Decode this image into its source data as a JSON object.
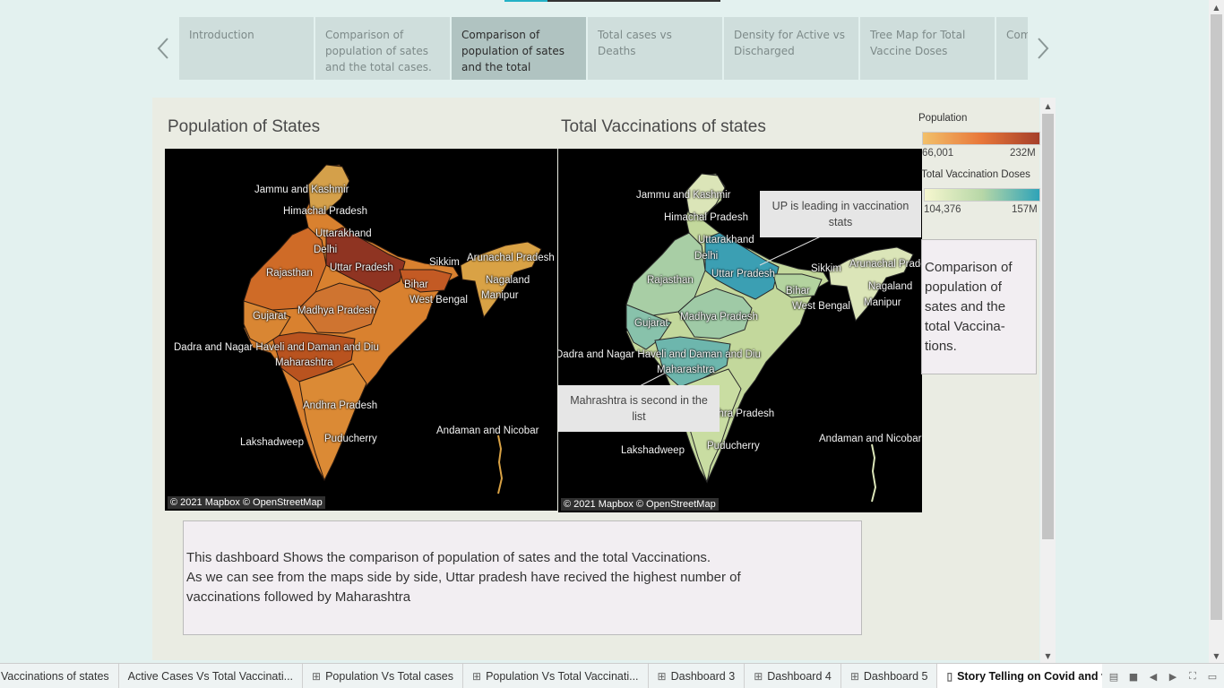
{
  "story": {
    "tabs": [
      {
        "label": "Introduction",
        "active": false
      },
      {
        "label": "Comparison of population of sates and the total cases.",
        "active": false
      },
      {
        "label": "Comparison of population of sates and the total",
        "active": true
      },
      {
        "label": "Total cases vs Deaths",
        "active": false
      },
      {
        "label": "Density for Active vs Discharged",
        "active": false
      },
      {
        "label": "Tree Map for Total Vaccine Doses",
        "active": false
      },
      {
        "label": "Comparation",
        "active": false
      }
    ]
  },
  "dashboard": {
    "population_title": "Population of States",
    "vaccination_title": "Total Vaccinations of states",
    "attribution": "© 2021 Mapbox © OpenStreetMap",
    "population_map": {
      "labels": {
        "jk": "Jammu and Kashmir",
        "hp": "Himachal Pradesh",
        "uk": "Uttarakhand",
        "dl": "Delhi",
        "rj": "Rajasthan",
        "up": "Uttar Pradesh",
        "sk": "Sikkim",
        "ar": "Arunachal Pradesh",
        "br": "Bihar",
        "nl": "Nagaland",
        "mn": "Manipur",
        "wb": "West Bengal",
        "gj": "Gujarat",
        "mp": "Madhya Pradesh",
        "dn": "Dadra and Nagar Haveli and Daman and Diu",
        "mh": "Maharashtra",
        "ap": "Andhra Pradesh",
        "ld": "Lakshadweep",
        "py": "Puducherry",
        "an": "Andaman and Nicobar"
      }
    },
    "vaccination_map": {
      "labels": {
        "jk": "Jammu and Kashmir",
        "hp": "Himachal Pradesh",
        "uk": "Uttarakhand",
        "dl": "Delhi",
        "rj": "Rajasthan",
        "up": "Uttar Pradesh",
        "sk": "Sikkim",
        "ar": "Arunachal Pradesh",
        "br": "Bihar",
        "nl": "Nagaland",
        "mn": "Manipur",
        "wb": "West Bengal",
        "gj": "Gujarat",
        "mp": "Madhya Pradesh",
        "dn": "Dadra and Nagar Haveli and Daman and Diu",
        "mh": "Maharashtra",
        "ap": "Andhra Pradesh",
        "ld": "Lakshadweep",
        "py": "Puducherry",
        "an": "Andaman and Nicobar"
      },
      "annotation_up": "UP is leading in vaccination stats",
      "annotation_mh": "Mahrashtra is second in the list"
    },
    "legend": {
      "population_title": "Population",
      "population_min": "66,001",
      "population_max": "232M",
      "population_colors": [
        "#f2c06a",
        "#e8773a",
        "#a53f2a"
      ],
      "vaccination_title": "Total Vaccination Doses",
      "vaccination_min": "104,376",
      "vaccination_max": "157M",
      "vaccination_colors": [
        "#f6f7cf",
        "#b7d7a7",
        "#2ea3b8"
      ]
    },
    "side_note": "Comparison of population of sates and the total Vaccina- tions.",
    "description": [
      "This dashboard Shows the comparison of population of sates and the total Vaccinations.",
      "As we can see from the maps side by side, Uttar pradesh have recived the highest number of",
      "vaccinations followed by Maharashtra"
    ]
  },
  "sheet_tabs": [
    {
      "label": "Vaccinations of states",
      "icon": "",
      "active": false
    },
    {
      "label": "Active Cases Vs Total Vaccinati...",
      "icon": "",
      "active": false
    },
    {
      "label": "Population Vs Total cases",
      "icon": "dashboard-icon",
      "active": false
    },
    {
      "label": "Population Vs Total Vaccinati...",
      "icon": "dashboard-icon",
      "active": false
    },
    {
      "label": "Dashboard 3",
      "icon": "dashboard-icon",
      "active": false
    },
    {
      "label": "Dashboard 4",
      "icon": "dashboard-icon",
      "active": false
    },
    {
      "label": "Dashboard 5",
      "icon": "dashboard-icon",
      "active": false
    },
    {
      "label": "Story Telling on Covid and v...",
      "icon": "story-icon",
      "active": true
    }
  ]
}
